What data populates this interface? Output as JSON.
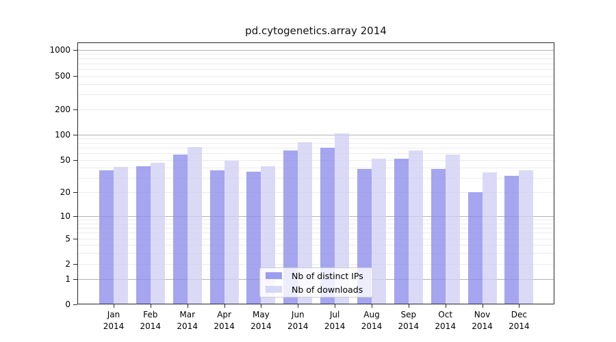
{
  "chart_data": {
    "type": "bar",
    "title": "pd.cytogenetics.array 2014",
    "categories": [
      "Jan",
      "Feb",
      "Mar",
      "Apr",
      "May",
      "Jun",
      "Jul",
      "Aug",
      "Sep",
      "Oct",
      "Nov",
      "Dec"
    ],
    "x_tick_year": "2014",
    "series": [
      {
        "name": "Nb of distinct IPs",
        "color": "#8c8cec",
        "values": [
          37,
          42,
          58,
          37,
          36,
          65,
          70,
          39,
          51,
          39,
          20,
          32
        ]
      },
      {
        "name": "Nb of downloads",
        "color": "#d0d0f5",
        "values": [
          41,
          46,
          71,
          49,
          42,
          81,
          104,
          51,
          64,
          58,
          35,
          37
        ]
      }
    ],
    "y_scale": "log1p",
    "y_ticks": [
      0,
      1,
      2,
      5,
      10,
      20,
      50,
      100,
      200,
      500,
      1000
    ],
    "y_major_gridlines": [
      1,
      10,
      100,
      1000
    ],
    "ylim": [
      0,
      1240
    ],
    "grid": true,
    "legend_position": "inside-bottom-center"
  },
  "colors": {
    "background": "#ffffff",
    "major_grid": "#b3b3b3",
    "minor_grid": "#ebebeb",
    "spine": "#262626",
    "text": "#000000"
  }
}
